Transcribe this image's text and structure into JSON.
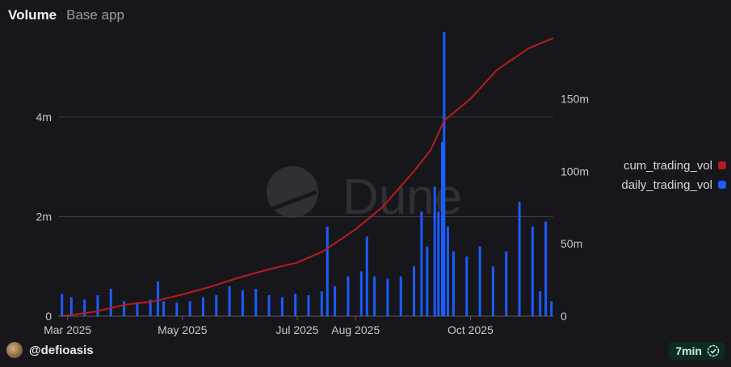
{
  "header": {
    "title": "Volume",
    "subtitle": "Base app"
  },
  "legend": [
    {
      "name": "cum_trading_vol",
      "color": "#b71c1c"
    },
    {
      "name": "daily_trading_vol",
      "color": "#1a5cff"
    }
  ],
  "watermark": "Dune",
  "footer": {
    "author": "@defioasis",
    "refresh": "7min"
  },
  "colors": {
    "background": "#17161b",
    "bar": "#1a5cff",
    "line": "#b71c1c",
    "grid": "#3a3a42"
  },
  "chart_data": {
    "type": "bar",
    "title": "Volume",
    "x_range": [
      "2025-02-24",
      "2025-11-14"
    ],
    "x_ticks": [
      {
        "date": "2025-03-01",
        "label": "Mar 2025"
      },
      {
        "date": "2025-05-01",
        "label": "May 2025"
      },
      {
        "date": "2025-07-01",
        "label": "Jul 2025"
      },
      {
        "date": "2025-08-01",
        "label": "Aug 2025"
      },
      {
        "date": "2025-10-01",
        "label": "Oct 2025"
      }
    ],
    "y_left": {
      "range": [
        0,
        5700000
      ],
      "ticks": [
        {
          "value": 0,
          "label": "0"
        },
        {
          "value": 2000000,
          "label": "2m"
        },
        {
          "value": 4000000,
          "label": "4m"
        }
      ]
    },
    "y_right": {
      "range": [
        0,
        196000000
      ],
      "ticks": [
        {
          "value": 0,
          "label": "0"
        },
        {
          "value": 50000000,
          "label": "50m"
        },
        {
          "value": 100000000,
          "label": "100m"
        },
        {
          "value": 150000000,
          "label": "150m"
        }
      ]
    },
    "grid": true,
    "legend_position": "right",
    "series": [
      {
        "name": "daily_trading_vol",
        "axis": "left",
        "style": "bar",
        "points": [
          [
            "2025-02-26",
            450000
          ],
          [
            "2025-03-03",
            380000
          ],
          [
            "2025-03-10",
            330000
          ],
          [
            "2025-03-17",
            420000
          ],
          [
            "2025-03-24",
            550000
          ],
          [
            "2025-03-31",
            300000
          ],
          [
            "2025-04-07",
            280000
          ],
          [
            "2025-04-14",
            330000
          ],
          [
            "2025-04-18",
            700000
          ],
          [
            "2025-04-21",
            300000
          ],
          [
            "2025-04-28",
            270000
          ],
          [
            "2025-05-05",
            300000
          ],
          [
            "2025-05-12",
            380000
          ],
          [
            "2025-05-19",
            420000
          ],
          [
            "2025-05-26",
            600000
          ],
          [
            "2025-06-02",
            520000
          ],
          [
            "2025-06-09",
            550000
          ],
          [
            "2025-06-16",
            420000
          ],
          [
            "2025-06-23",
            380000
          ],
          [
            "2025-06-30",
            450000
          ],
          [
            "2025-07-07",
            420000
          ],
          [
            "2025-07-14",
            500000
          ],
          [
            "2025-07-17",
            1800000
          ],
          [
            "2025-07-21",
            600000
          ],
          [
            "2025-07-28",
            800000
          ],
          [
            "2025-08-04",
            900000
          ],
          [
            "2025-08-07",
            1600000
          ],
          [
            "2025-08-11",
            800000
          ],
          [
            "2025-08-18",
            750000
          ],
          [
            "2025-08-25",
            800000
          ],
          [
            "2025-09-01",
            1000000
          ],
          [
            "2025-09-05",
            2100000
          ],
          [
            "2025-09-08",
            1400000
          ],
          [
            "2025-09-12",
            2600000
          ],
          [
            "2025-09-14",
            2100000
          ],
          [
            "2025-09-16",
            3500000
          ],
          [
            "2025-09-17",
            5700000
          ],
          [
            "2025-09-19",
            1800000
          ],
          [
            "2025-09-22",
            1300000
          ],
          [
            "2025-09-29",
            1200000
          ],
          [
            "2025-10-06",
            1400000
          ],
          [
            "2025-10-13",
            1000000
          ],
          [
            "2025-10-20",
            1300000
          ],
          [
            "2025-10-27",
            2300000
          ],
          [
            "2025-11-03",
            1800000
          ],
          [
            "2025-11-07",
            500000
          ],
          [
            "2025-11-10",
            1900000
          ],
          [
            "2025-11-13",
            300000
          ]
        ]
      },
      {
        "name": "cum_trading_vol",
        "axis": "right",
        "style": "line",
        "points": [
          [
            "2025-02-26",
            0
          ],
          [
            "2025-03-15",
            3000000
          ],
          [
            "2025-04-01",
            8000000
          ],
          [
            "2025-04-15",
            10000000
          ],
          [
            "2025-05-01",
            15000000
          ],
          [
            "2025-05-15",
            20000000
          ],
          [
            "2025-06-01",
            27000000
          ],
          [
            "2025-06-15",
            32000000
          ],
          [
            "2025-07-01",
            37000000
          ],
          [
            "2025-07-15",
            45000000
          ],
          [
            "2025-08-01",
            60000000
          ],
          [
            "2025-08-15",
            75000000
          ],
          [
            "2025-09-01",
            100000000
          ],
          [
            "2025-09-10",
            115000000
          ],
          [
            "2025-09-17",
            135000000
          ],
          [
            "2025-10-01",
            150000000
          ],
          [
            "2025-10-15",
            170000000
          ],
          [
            "2025-11-01",
            185000000
          ],
          [
            "2025-11-14",
            192000000
          ]
        ]
      }
    ]
  }
}
